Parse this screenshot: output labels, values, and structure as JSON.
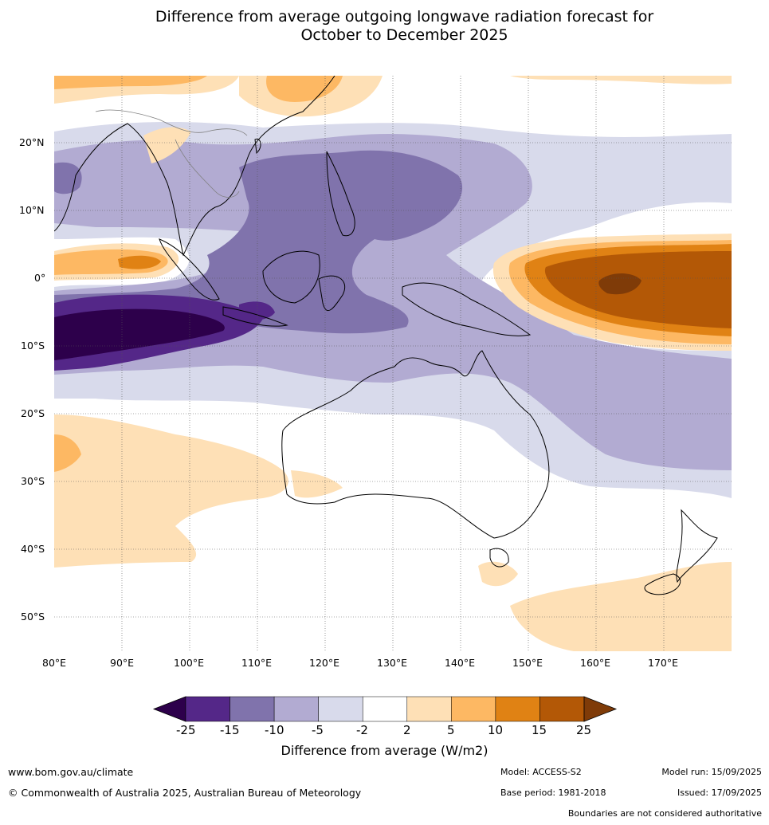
{
  "title_line1": "Difference from average outgoing longwave radiation forecast for",
  "title_line2": "October to December 2025",
  "lat_ticks": [
    "20°N",
    "10°N",
    "0°",
    "10°S",
    "20°S",
    "30°S",
    "40°S",
    "50°S"
  ],
  "lon_ticks": [
    "80°E",
    "90°E",
    "100°E",
    "110°E",
    "120°E",
    "130°E",
    "140°E",
    "150°E",
    "160°E",
    "170°E"
  ],
  "colorbar": {
    "labels": [
      "-25",
      "-15",
      "-10",
      "-5",
      "-2",
      "2",
      "5",
      "10",
      "15",
      "25"
    ],
    "colors": [
      "#2d004b",
      "#542788",
      "#8073ac",
      "#b2abd2",
      "#d8daeb",
      "#ffffff",
      "#fee0b6",
      "#fdb863",
      "#e08214",
      "#b35806",
      "#7f3b08"
    ],
    "title": "Difference from average (W/m2)"
  },
  "footer": {
    "url": "www.bom.gov.au/climate",
    "copyright": "© Commonwealth of Australia 2025, Australian Bureau of Meteorology",
    "model": "Model: ACCESS-S2",
    "base_period": "Base period: 1981-2018",
    "model_run": "Model run: 15/09/2025",
    "issued": "Issued: 17/09/2025",
    "disclaimer": "Boundaries are not considered authoritative"
  }
}
